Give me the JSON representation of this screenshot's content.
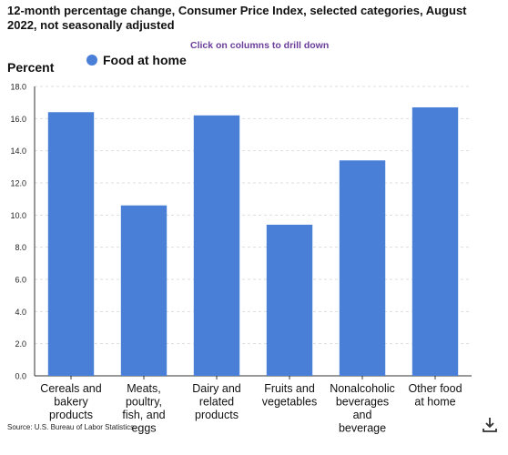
{
  "title": "12-month percentage change, Consumer Price Index, selected categories, August 2022, not seasonally adjusted",
  "subtitle": "Click on columns to drill down",
  "credit": "Source: U.S. Bureau of Labor Statistics.",
  "download_icon": "download-icon",
  "colors": {
    "bar": "#4a7fd8",
    "grid": "#dddddd",
    "axis": "#333333",
    "subtitle": "#6a3d9a"
  },
  "chart_data": {
    "type": "bar",
    "title": "12-month percentage change, Consumer Price Index, selected categories, August 2022, not seasonally adjusted",
    "ylabel": "Percent",
    "xlabel": "",
    "categories": [
      [
        "Cereals and",
        "bakery",
        "products"
      ],
      [
        "Meats,",
        "poultry,",
        "fish, and",
        "eggs"
      ],
      [
        "Dairy and",
        "related",
        "products"
      ],
      [
        "Fruits and",
        "vegetables"
      ],
      [
        "Nonalcoholic",
        "beverages",
        "and",
        "beverage"
      ],
      [
        "Other food",
        "at home"
      ]
    ],
    "series": [
      {
        "name": "Food at home",
        "values": [
          16.4,
          10.6,
          16.2,
          9.4,
          13.4,
          16.7
        ]
      }
    ],
    "ylim": [
      0,
      18
    ],
    "yticks": [
      "0.0",
      "2.0",
      "4.0",
      "6.0",
      "8.0",
      "10.0",
      "12.0",
      "14.0",
      "16.0",
      "18.0"
    ],
    "grid": true,
    "legend_position": "top-left"
  }
}
